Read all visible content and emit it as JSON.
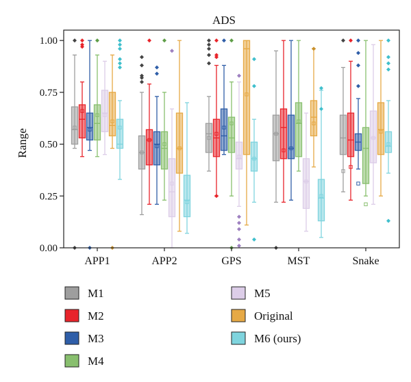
{
  "chart_data": {
    "type": "box",
    "title": "ADS",
    "xlabel": "",
    "ylabel": "Range",
    "ylim": [
      0,
      1.05
    ],
    "yticks": [
      "0.00",
      "0.25",
      "0.50",
      "0.75",
      "1.00"
    ],
    "ytick_values": [
      0,
      0.25,
      0.5,
      0.75,
      1.0
    ],
    "categories": [
      "APP1",
      "APP2",
      "GPS",
      "MST",
      "Snake"
    ],
    "legend_position": "bottom",
    "series": [
      {
        "name": "M1",
        "color": "#9e9e9e",
        "outlier_color": "#444444",
        "boxes": [
          {
            "min": 0.48,
            "q1": 0.5,
            "median": 0.57,
            "q3": 0.68,
            "max": 0.93,
            "mean": 0.58,
            "outliers": [
              1.0,
              0.0
            ]
          },
          {
            "min": 0.16,
            "q1": 0.38,
            "median": 0.46,
            "q3": 0.54,
            "max": 0.75,
            "mean": 0.46,
            "outliers": [
              0.92,
              0.88,
              0.83,
              0.82,
              0.8
            ]
          },
          {
            "min": 0.37,
            "q1": 0.46,
            "median": 0.55,
            "q3": 0.6,
            "max": 0.73,
            "mean": 0.53,
            "outliers": [
              1.0,
              0.98,
              0.96,
              0.93,
              0.89
            ]
          },
          {
            "min": 0.22,
            "q1": 0.42,
            "median": 0.55,
            "q3": 0.64,
            "max": 0.95,
            "mean": 0.55,
            "outliers": [
              0.0
            ]
          },
          {
            "min": 0.27,
            "q1": 0.45,
            "median": 0.53,
            "q3": 0.64,
            "max": 0.87,
            "mean": 0.37,
            "outliers": [
              1.0
            ]
          }
        ]
      },
      {
        "name": "M2",
        "color": "#e8242b",
        "outlier_color": "#e8242b",
        "boxes": [
          {
            "min": 0.44,
            "q1": 0.53,
            "median": 0.62,
            "q3": 0.69,
            "max": 0.8,
            "mean": 0.66,
            "outliers": [
              1.0,
              0.98,
              0.97
            ]
          },
          {
            "min": 0.21,
            "q1": 0.4,
            "median": 0.52,
            "q3": 0.57,
            "max": 0.79,
            "mean": 0.52,
            "outliers": [
              1.0
            ]
          },
          {
            "min": 0.25,
            "q1": 0.44,
            "median": 0.53,
            "q3": 0.62,
            "max": 0.88,
            "mean": 0.55,
            "outliers": [
              1.0,
              0.93,
              0.92,
              0.25
            ]
          },
          {
            "min": 0.22,
            "q1": 0.43,
            "median": 0.58,
            "q3": 0.67,
            "max": 1.0,
            "mean": 0.47,
            "outliers": []
          },
          {
            "min": 0.23,
            "q1": 0.44,
            "median": 0.52,
            "q3": 0.65,
            "max": 0.9,
            "mean": 0.39,
            "outliers": [
              1.0
            ]
          }
        ]
      },
      {
        "name": "M3",
        "color": "#2f5ea8",
        "outlier_color": "#2f5ea8",
        "boxes": [
          {
            "min": 0.47,
            "q1": 0.52,
            "median": 0.58,
            "q3": 0.65,
            "max": 1.0,
            "mean": 0.57,
            "outliers": [
              0.0
            ]
          },
          {
            "min": 0.21,
            "q1": 0.4,
            "median": 0.5,
            "q3": 0.56,
            "max": 0.73,
            "mean": 0.49,
            "outliers": [
              0.87,
              0.84
            ]
          },
          {
            "min": 0.45,
            "q1": 0.47,
            "median": 0.54,
            "q3": 0.67,
            "max": 0.88,
            "mean": 0.58,
            "outliers": [
              1.0
            ]
          },
          {
            "min": 0.23,
            "q1": 0.43,
            "median": 0.48,
            "q3": 0.64,
            "max": 1.0,
            "mean": 0.48,
            "outliers": []
          },
          {
            "min": 0.38,
            "q1": 0.47,
            "median": 0.51,
            "q3": 0.55,
            "max": 0.72,
            "mean": 0.31,
            "outliers": [
              1.0,
              0.94,
              0.88,
              0.78
            ]
          }
        ]
      },
      {
        "name": "M4",
        "color": "#88bf6e",
        "outlier_color": "#5f9e48",
        "boxes": [
          {
            "min": 0.44,
            "q1": 0.52,
            "median": 0.6,
            "q3": 0.69,
            "max": 0.93,
            "mean": 0.64,
            "outliers": [
              1.0
            ]
          },
          {
            "min": 0.23,
            "q1": 0.38,
            "median": 0.48,
            "q3": 0.56,
            "max": 0.75,
            "mean": 0.5,
            "outliers": [
              1.0
            ]
          },
          {
            "min": 0.25,
            "q1": 0.46,
            "median": 0.53,
            "q3": 0.63,
            "max": 0.8,
            "mean": 0.6,
            "outliers": [
              1.0,
              0.0
            ]
          },
          {
            "min": 0.37,
            "q1": 0.44,
            "median": 0.6,
            "q3": 0.7,
            "max": 1.0,
            "mean": 0.61,
            "outliers": []
          },
          {
            "min": 0.25,
            "q1": 0.31,
            "median": 0.48,
            "q3": 0.58,
            "max": 1.0,
            "mean": 0.21,
            "outliers": []
          }
        ]
      },
      {
        "name": "M5",
        "color": "#dccde8",
        "outlier_color": "#9e80c0",
        "boxes": [
          {
            "min": 0.45,
            "q1": 0.56,
            "median": 0.65,
            "q3": 0.76,
            "max": 0.9,
            "mean": 0.64,
            "outliers": []
          },
          {
            "min": 0.0,
            "q1": 0.15,
            "median": 0.27,
            "q3": 0.43,
            "max": 0.67,
            "mean": 0.31,
            "outliers": [
              0.95
            ]
          },
          {
            "min": 0.2,
            "q1": 0.38,
            "median": 0.43,
            "q3": 0.51,
            "max": 0.8,
            "mean": 0.44,
            "outliers": [
              0.83,
              0.15,
              0.12,
              0.09,
              0.04,
              0.01
            ]
          },
          {
            "min": 0.08,
            "q1": 0.19,
            "median": 0.32,
            "q3": 0.43,
            "max": 0.65,
            "mean": 0.32,
            "outliers": []
          },
          {
            "min": 0.21,
            "q1": 0.41,
            "median": 0.53,
            "q3": 0.66,
            "max": 0.98,
            "mean": 0.53,
            "outliers": []
          }
        ]
      },
      {
        "name": "Original",
        "color": "#e6a945",
        "outlier_color": "#c8902c",
        "boxes": [
          {
            "min": 0.48,
            "q1": 0.54,
            "median": 0.59,
            "q3": 0.75,
            "max": 0.93,
            "mean": 0.61,
            "outliers": [
              0.0
            ]
          },
          {
            "min": 0.08,
            "q1": 0.36,
            "median": 0.48,
            "q3": 0.65,
            "max": 1.0,
            "mean": 0.48,
            "outliers": []
          },
          {
            "min": 0.11,
            "q1": 0.45,
            "median": 0.96,
            "q3": 1.0,
            "max": 1.0,
            "mean": 0.74,
            "outliers": []
          },
          {
            "min": 0.39,
            "q1": 0.54,
            "median": 0.63,
            "q3": 0.71,
            "max": 0.96,
            "mean": 0.6,
            "outliers": [
              0.96
            ]
          },
          {
            "min": 0.25,
            "q1": 0.45,
            "median": 0.57,
            "q3": 0.7,
            "max": 1.0,
            "mean": 0.56,
            "outliers": []
          }
        ]
      },
      {
        "name": "M6 (ours)",
        "color": "#7fd4de",
        "outlier_color": "#3fbfcc",
        "boxes": [
          {
            "min": 0.33,
            "q1": 0.48,
            "median": 0.5,
            "q3": 0.62,
            "max": 0.71,
            "mean": 0.58,
            "outliers": [
              1.0,
              0.98,
              0.96,
              0.91,
              0.89,
              0.87
            ]
          },
          {
            "min": 0.07,
            "q1": 0.15,
            "median": 0.23,
            "q3": 0.35,
            "max": 0.7,
            "mean": 0.22,
            "outliers": []
          },
          {
            "min": 0.22,
            "q1": 0.37,
            "median": 0.43,
            "q3": 0.51,
            "max": 0.62,
            "mean": 0.43,
            "outliers": [
              0.91,
              0.78,
              0.04
            ]
          },
          {
            "min": 0.05,
            "q1": 0.13,
            "median": 0.24,
            "q3": 0.33,
            "max": 0.76,
            "mean": 0.25,
            "outliers": [
              0.77,
              0.67
            ]
          },
          {
            "min": 0.36,
            "q1": 0.46,
            "median": 0.49,
            "q3": 0.56,
            "max": 0.71,
            "mean": 0.5,
            "outliers": [
              1.0,
              0.92,
              0.89,
              0.86,
              0.13
            ]
          }
        ]
      }
    ]
  }
}
